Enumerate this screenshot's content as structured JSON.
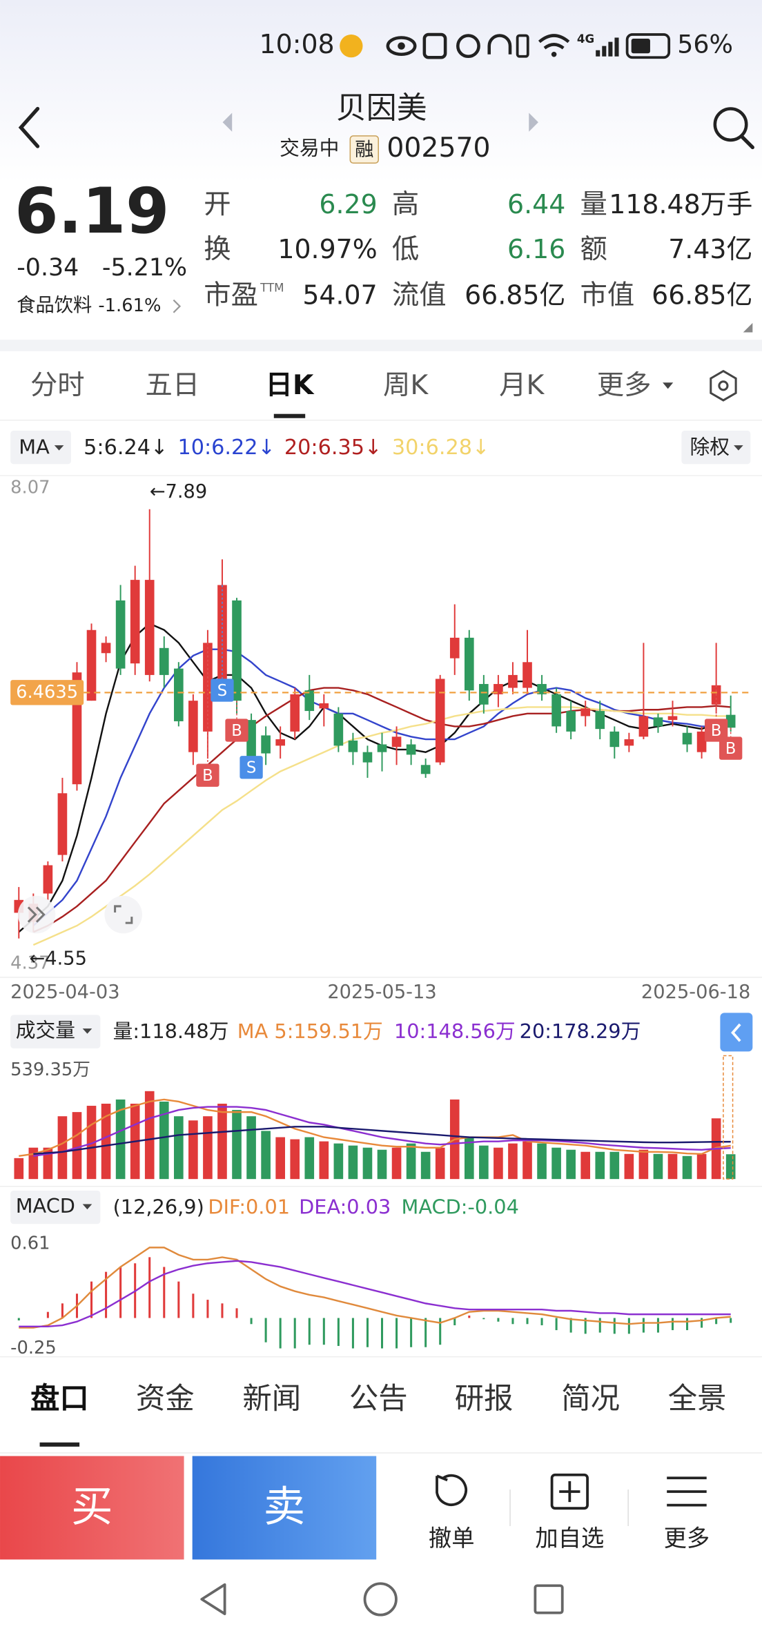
{
  "status_bar": {
    "time": "10:08",
    "network": "4G",
    "battery": "56%"
  },
  "header": {
    "title": "贝因美",
    "state": "交易中",
    "badge": "融",
    "code": "002570"
  },
  "quote": {
    "price": "6.19",
    "change": "-0.34",
    "change_pct": "-5.21%",
    "sector": "食品饮料",
    "sector_change": "-1.61%",
    "fields": [
      {
        "label": "开",
        "value": "6.29",
        "color": "#2a8a4f"
      },
      {
        "label": "高",
        "value": "6.44",
        "color": "#2a8a4f"
      },
      {
        "label": "量",
        "value": "118.48万手",
        "color": "#222222"
      },
      {
        "label": "换",
        "value": "10.97%",
        "color": "#222222"
      },
      {
        "label": "低",
        "value": "6.16",
        "color": "#2a8a4f"
      },
      {
        "label": "额",
        "value": "7.43亿",
        "color": "#222222"
      },
      {
        "label": "市盈",
        "sup": "TTM",
        "value": "54.07",
        "color": "#222222"
      },
      {
        "label": "流值",
        "value": "66.85亿",
        "color": "#222222"
      },
      {
        "label": "市值",
        "value": "66.85亿",
        "color": "#222222"
      }
    ]
  },
  "period_tabs": {
    "items": [
      "分时",
      "五日",
      "日K",
      "周K",
      "月K",
      "更多"
    ],
    "active": 2
  },
  "ma_bar": {
    "selector": "MA",
    "adjust": "除权",
    "items": [
      {
        "text": "5:6.24↓",
        "color": "#222222"
      },
      {
        "text": "10:6.22↓",
        "color": "#2a44d0"
      },
      {
        "text": "20:6.35↓",
        "color": "#b02020"
      },
      {
        "text": "30:6.28↓",
        "color": "#f2d36b"
      }
    ]
  },
  "kline": {
    "type": "candlestick",
    "ylim": [
      4.37,
      8.07
    ],
    "yticks": [
      8.07,
      4.37
    ],
    "categories": [
      "2025-04-03",
      null,
      null,
      null,
      null,
      null,
      null,
      null,
      null,
      null,
      null,
      null,
      null,
      null,
      null,
      null,
      null,
      null,
      null,
      null,
      null,
      null,
      null,
      null,
      null,
      "2025-05-13",
      null,
      null,
      null,
      null,
      null,
      null,
      null,
      null,
      null,
      null,
      null,
      null,
      null,
      null,
      null,
      null,
      null,
      null,
      null,
      null,
      null,
      null,
      null,
      "2025-06-18"
    ],
    "up_color": "#e03a3a",
    "down_color": "#2f9a5e",
    "candles": [
      [
        4.75,
        4.95,
        4.55,
        4.85
      ],
      [
        4.68,
        4.9,
        4.6,
        4.82
      ],
      [
        4.9,
        5.15,
        4.85,
        5.12
      ],
      [
        5.2,
        5.8,
        5.15,
        5.68
      ],
      [
        5.75,
        6.7,
        5.7,
        6.62
      ],
      [
        6.4,
        7.0,
        6.4,
        6.95
      ],
      [
        6.77,
        6.9,
        6.7,
        6.85
      ],
      [
        7.18,
        7.3,
        6.6,
        6.65
      ],
      [
        6.69,
        7.45,
        6.6,
        7.34
      ],
      [
        6.6,
        7.89,
        6.55,
        7.34
      ],
      [
        6.81,
        6.9,
        6.5,
        6.6
      ],
      [
        6.65,
        6.7,
        6.2,
        6.24
      ],
      [
        6.0,
        6.45,
        5.9,
        6.4
      ],
      [
        6.16,
        6.95,
        5.95,
        6.85
      ],
      [
        6.55,
        7.5,
        6.4,
        7.3
      ],
      [
        7.18,
        7.2,
        6.3,
        6.4
      ],
      [
        6.25,
        6.3,
        5.8,
        5.88
      ],
      [
        6.13,
        6.2,
        5.9,
        5.99
      ],
      [
        6.05,
        6.2,
        5.95,
        6.1
      ],
      [
        6.16,
        6.5,
        6.1,
        6.45
      ],
      [
        6.48,
        6.6,
        6.25,
        6.32
      ],
      [
        6.34,
        6.45,
        6.2,
        6.38
      ],
      [
        6.3,
        6.35,
        6.0,
        6.05
      ],
      [
        6.09,
        6.15,
        5.9,
        6.0
      ],
      [
        6.0,
        6.05,
        5.8,
        5.92
      ],
      [
        6.06,
        6.15,
        5.85,
        6.0
      ],
      [
        6.04,
        6.2,
        5.9,
        6.12
      ],
      [
        6.06,
        6.1,
        5.9,
        5.98
      ],
      [
        5.9,
        5.95,
        5.8,
        5.83
      ],
      [
        5.92,
        6.6,
        5.9,
        6.57
      ],
      [
        6.73,
        7.15,
        6.6,
        6.89
      ],
      [
        6.89,
        6.95,
        6.4,
        6.48
      ],
      [
        6.53,
        6.6,
        6.3,
        6.37
      ],
      [
        6.45,
        6.6,
        6.35,
        6.53
      ],
      [
        6.5,
        6.7,
        6.45,
        6.6
      ],
      [
        6.5,
        6.95,
        6.45,
        6.7
      ],
      [
        6.53,
        6.6,
        6.4,
        6.45
      ],
      [
        6.45,
        6.5,
        6.15,
        6.2
      ],
      [
        6.32,
        6.4,
        6.1,
        6.16
      ],
      [
        6.28,
        6.4,
        6.2,
        6.34
      ],
      [
        6.32,
        6.4,
        6.1,
        6.18
      ],
      [
        6.16,
        6.2,
        5.95,
        6.04
      ],
      [
        6.05,
        6.15,
        6.0,
        6.1
      ],
      [
        6.12,
        6.85,
        6.1,
        6.28
      ],
      [
        6.27,
        6.3,
        6.15,
        6.2
      ],
      [
        6.25,
        6.4,
        6.2,
        6.28
      ],
      [
        6.15,
        6.2,
        6.0,
        6.06
      ],
      [
        6.0,
        6.2,
        5.95,
        6.16
      ],
      [
        6.37,
        6.85,
        6.3,
        6.52
      ],
      [
        6.29,
        6.44,
        6.16,
        6.19
      ]
    ],
    "ma": [
      {
        "name": "5",
        "color": "#111111",
        "values": [
          4.6,
          4.7,
          4.8,
          5.0,
          5.35,
          5.8,
          6.3,
          6.7,
          6.9,
          7.0,
          6.95,
          6.85,
          6.7,
          6.55,
          6.6,
          6.6,
          6.5,
          6.3,
          6.15,
          6.1,
          6.2,
          6.35,
          6.3,
          6.2,
          6.1,
          6.05,
          6.02,
          6.02,
          6.0,
          6.05,
          6.15,
          6.3,
          6.4,
          6.5,
          6.55,
          6.55,
          6.5,
          6.45,
          6.4,
          6.35,
          6.3,
          6.25,
          6.2,
          6.18,
          6.2,
          6.22,
          6.2,
          6.18,
          6.22,
          6.24
        ]
      },
      {
        "name": "10",
        "color": "#3344cc",
        "values": [
          null,
          4.65,
          4.75,
          4.85,
          5.0,
          5.25,
          5.5,
          5.8,
          6.05,
          6.3,
          6.5,
          6.65,
          6.75,
          6.8,
          6.8,
          6.78,
          6.7,
          6.6,
          6.55,
          6.5,
          6.4,
          6.35,
          6.3,
          6.3,
          6.25,
          6.2,
          6.15,
          6.12,
          6.1,
          6.1,
          6.1,
          6.15,
          6.2,
          6.3,
          6.38,
          6.45,
          6.48,
          6.5,
          6.48,
          6.42,
          6.38,
          6.33,
          6.3,
          6.28,
          6.25,
          6.23,
          6.22,
          6.2,
          6.2,
          6.22
        ]
      },
      {
        "name": "20",
        "color": "#a82020",
        "values": [
          null,
          4.6,
          4.65,
          4.72,
          4.8,
          4.9,
          5.0,
          5.15,
          5.3,
          5.45,
          5.6,
          5.7,
          5.8,
          5.9,
          6.0,
          6.1,
          6.2,
          6.28,
          6.35,
          6.42,
          6.48,
          6.5,
          6.5,
          6.48,
          6.45,
          6.4,
          6.35,
          6.3,
          6.25,
          6.22,
          6.2,
          6.2,
          6.22,
          6.25,
          6.28,
          6.3,
          6.3,
          6.3,
          6.32,
          6.33,
          6.33,
          6.32,
          6.32,
          6.33,
          6.33,
          6.34,
          6.35,
          6.35,
          6.36,
          6.35
        ]
      },
      {
        "name": "30",
        "color": "#f5e08a",
        "values": [
          null,
          4.5,
          4.55,
          4.6,
          4.65,
          4.72,
          4.8,
          4.88,
          4.96,
          5.05,
          5.15,
          5.25,
          5.35,
          5.45,
          5.55,
          5.62,
          5.7,
          5.78,
          5.85,
          5.9,
          5.95,
          6.0,
          6.05,
          6.1,
          6.12,
          6.15,
          6.17,
          6.2,
          6.22,
          6.25,
          6.28,
          6.3,
          6.32,
          6.33,
          6.34,
          6.35,
          6.35,
          6.35,
          6.35,
          6.34,
          6.33,
          6.32,
          6.31,
          6.3,
          6.3,
          6.3,
          6.29,
          6.29,
          6.28,
          6.28
        ]
      }
    ],
    "price_line": 6.4635,
    "max_label": "←7.89",
    "min_label": "←4.55",
    "signals": [
      {
        "index": 13,
        "label": "B"
      },
      {
        "index": 14,
        "label": "S"
      },
      {
        "index": 15,
        "label": "B"
      },
      {
        "index": 16,
        "label": "S"
      },
      {
        "index": 48,
        "label": "B"
      },
      {
        "index": 49,
        "label": "B"
      }
    ]
  },
  "volume": {
    "type": "bar",
    "title": "成交量",
    "summary": "量:118.48万",
    "ma_labels": [
      {
        "text": "MA 5:159.51万",
        "color": "#e8893a"
      },
      {
        "text": "10:148.56万",
        "color": "#8b2fd0"
      },
      {
        "text": "20:178.29万",
        "color": "#1a1a6e"
      }
    ],
    "ylim": [
      0,
      539.35
    ],
    "yticks": [
      {
        "value": 539.35,
        "label": "539.35万"
      }
    ],
    "values": [
      100,
      150,
      150,
      300,
      320,
      350,
      360,
      380,
      360,
      420,
      370,
      300,
      280,
      300,
      360,
      330,
      300,
      230,
      200,
      190,
      200,
      180,
      170,
      160,
      150,
      140,
      150,
      170,
      130,
      150,
      380,
      200,
      160,
      150,
      170,
      180,
      170,
      150,
      140,
      130,
      130,
      130,
      120,
      140,
      120,
      120,
      110,
      120,
      290,
      118.48
    ],
    "ma": [
      {
        "name": "5",
        "color": "#e8893a",
        "values": [
          110,
          120,
          140,
          170,
          210,
          260,
          300,
          330,
          350,
          370,
          380,
          370,
          350,
          330,
          320,
          320,
          320,
          300,
          270,
          240,
          220,
          200,
          190,
          180,
          170,
          160,
          155,
          155,
          150,
          150,
          190,
          200,
          200,
          200,
          210,
          180,
          175,
          170,
          165,
          160,
          150,
          140,
          135,
          130,
          130,
          128,
          122,
          120,
          150,
          159.51
        ]
      },
      {
        "name": "10",
        "color": "#8b2fd0",
        "values": [
          null,
          110,
          120,
          130,
          150,
          170,
          200,
          230,
          260,
          290,
          310,
          330,
          340,
          345,
          345,
          345,
          340,
          330,
          310,
          290,
          270,
          260,
          245,
          230,
          215,
          200,
          190,
          180,
          170,
          165,
          170,
          175,
          180,
          180,
          185,
          185,
          185,
          182,
          178,
          172,
          165,
          160,
          155,
          150,
          148,
          145,
          142,
          140,
          145,
          148.56
        ]
      },
      {
        "name": "20",
        "color": "#1a1a6e",
        "values": [
          null,
          120,
          125,
          130,
          140,
          150,
          160,
          170,
          180,
          190,
          200,
          210,
          215,
          220,
          225,
          230,
          235,
          240,
          245,
          250,
          250,
          250,
          245,
          240,
          235,
          230,
          225,
          220,
          215,
          210,
          205,
          200,
          198,
          196,
          194,
          192,
          190,
          188,
          186,
          184,
          182,
          180,
          178,
          176,
          175,
          175,
          176,
          177,
          178,
          178.29
        ]
      }
    ]
  },
  "macd": {
    "type": "macd",
    "title": "MACD",
    "params": "(12,26,9)",
    "labels": [
      {
        "text": "DIF:0.01",
        "color": "#e8893a"
      },
      {
        "text": "DEA:0.03",
        "color": "#8b2fd0"
      },
      {
        "text": "MACD:-0.04",
        "color": "#2f9a5e"
      }
    ],
    "ylim": [
      -0.25,
      0.61
    ],
    "yticks": [
      0.61,
      -0.25
    ],
    "macd": [
      -0.02,
      0.0,
      0.05,
      0.12,
      0.2,
      0.3,
      0.38,
      0.42,
      0.45,
      0.5,
      0.42,
      0.3,
      0.2,
      0.15,
      0.12,
      0.08,
      -0.05,
      -0.2,
      -0.25,
      -0.25,
      -0.22,
      -0.22,
      -0.23,
      -0.25,
      -0.24,
      -0.25,
      -0.25,
      -0.24,
      -0.24,
      -0.22,
      -0.06,
      0.02,
      -0.01,
      -0.03,
      -0.05,
      -0.05,
      -0.06,
      -0.1,
      -0.12,
      -0.13,
      -0.12,
      -0.13,
      -0.13,
      -0.12,
      -0.12,
      -0.1,
      -0.1,
      -0.08,
      -0.05,
      -0.04
    ],
    "dif": [
      -0.08,
      -0.08,
      -0.06,
      0.0,
      0.1,
      0.22,
      0.32,
      0.42,
      0.5,
      0.58,
      0.58,
      0.52,
      0.48,
      0.48,
      0.5,
      0.48,
      0.4,
      0.32,
      0.26,
      0.22,
      0.19,
      0.17,
      0.14,
      0.11,
      0.08,
      0.05,
      0.02,
      0.0,
      -0.02,
      -0.04,
      0.0,
      0.05,
      0.06,
      0.06,
      0.05,
      0.04,
      0.03,
      0.01,
      -0.01,
      -0.02,
      -0.03,
      -0.04,
      -0.05,
      -0.04,
      -0.04,
      -0.03,
      -0.03,
      -0.02,
      0.0,
      0.01
    ],
    "dea": [
      -0.07,
      -0.07,
      -0.07,
      -0.06,
      -0.03,
      0.02,
      0.08,
      0.15,
      0.22,
      0.3,
      0.36,
      0.4,
      0.43,
      0.45,
      0.46,
      0.47,
      0.46,
      0.44,
      0.42,
      0.39,
      0.36,
      0.33,
      0.3,
      0.27,
      0.24,
      0.21,
      0.18,
      0.15,
      0.12,
      0.1,
      0.08,
      0.07,
      0.07,
      0.07,
      0.07,
      0.07,
      0.07,
      0.06,
      0.06,
      0.05,
      0.04,
      0.04,
      0.03,
      0.03,
      0.03,
      0.03,
      0.03,
      0.03,
      0.03,
      0.03
    ],
    "dif_color": "#e08a3c",
    "dea_color": "#8b2fd0"
  },
  "bottom_tabs": {
    "items": [
      "盘口",
      "资金",
      "新闻",
      "公告",
      "研报",
      "简况",
      "全景"
    ],
    "active": 0
  },
  "actions": {
    "buy": "买",
    "sell": "卖",
    "tools": [
      "撤单",
      "加自选",
      "更多"
    ]
  }
}
